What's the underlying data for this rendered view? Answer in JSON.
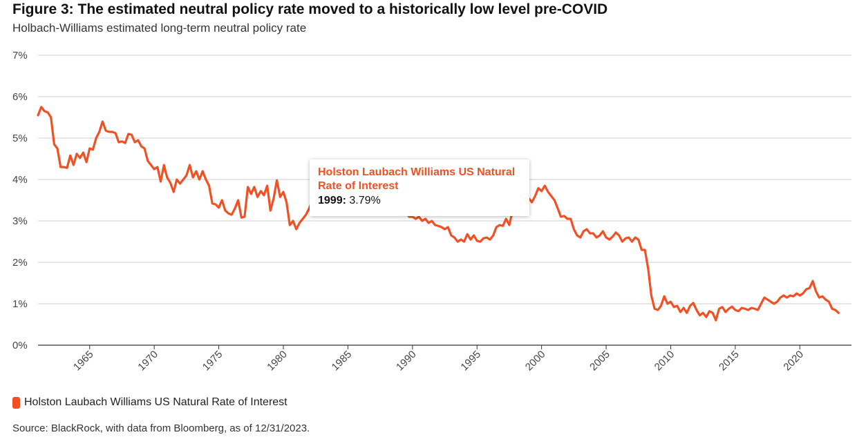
{
  "title": "Figure 3: The estimated neutral policy rate moved to a historically low level pre-COVID",
  "subtitle": "Holbach-Williams estimated long-term neutral policy rate",
  "source": "Source: BlackRock, with data from Bloomberg, as of 12/31/2023.",
  "accent_color": "#f05023",
  "tooltip": {
    "series_name": "Holston Laubach Williams US Natural Rate of Interest",
    "year": "1999:",
    "value": "3.79%"
  },
  "chart_data": {
    "type": "line",
    "title": "Figure 3: The estimated neutral policy rate moved to a historically low level pre-COVID",
    "subtitle": "Holbach-Williams estimated long-term neutral policy rate",
    "xlabel": "",
    "ylabel": "",
    "xlim": [
      1961,
      2024
    ],
    "ylim": [
      0,
      7
    ],
    "grid": true,
    "legend_position": "bottom-left",
    "y_ticks": [
      0,
      1,
      2,
      3,
      4,
      5,
      6,
      7
    ],
    "y_tick_labels": [
      "0%",
      "1%",
      "2%",
      "3%",
      "4%",
      "5%",
      "6%",
      "7%"
    ],
    "x_ticks": [
      1965,
      1970,
      1975,
      1980,
      1985,
      1990,
      1995,
      2000,
      2005,
      2010,
      2015,
      2020
    ],
    "x_tick_labels": [
      "1965",
      "1970",
      "1975",
      "1980",
      "1985",
      "1990",
      "1995",
      "2000",
      "2005",
      "2010",
      "2015",
      "2020"
    ],
    "series": [
      {
        "name": "Holston Laubach Williams US Natural Rate of Interest",
        "color": "#f05023",
        "points": [
          [
            1961.0,
            5.55
          ],
          [
            1961.25,
            5.75
          ],
          [
            1961.5,
            5.65
          ],
          [
            1961.75,
            5.62
          ],
          [
            1962.0,
            5.5
          ],
          [
            1962.25,
            4.85
          ],
          [
            1962.5,
            4.75
          ],
          [
            1962.75,
            4.3
          ],
          [
            1963.0,
            4.3
          ],
          [
            1963.25,
            4.28
          ],
          [
            1963.5,
            4.58
          ],
          [
            1963.75,
            4.35
          ],
          [
            1964.0,
            4.62
          ],
          [
            1964.25,
            4.52
          ],
          [
            1964.5,
            4.65
          ],
          [
            1964.75,
            4.42
          ],
          [
            1965.0,
            4.75
          ],
          [
            1965.25,
            4.72
          ],
          [
            1965.5,
            5.0
          ],
          [
            1965.75,
            5.15
          ],
          [
            1966.0,
            5.4
          ],
          [
            1966.25,
            5.18
          ],
          [
            1966.5,
            5.15
          ],
          [
            1966.75,
            5.15
          ],
          [
            1967.0,
            5.12
          ],
          [
            1967.25,
            4.9
          ],
          [
            1967.5,
            4.92
          ],
          [
            1967.75,
            4.88
          ],
          [
            1968.0,
            5.1
          ],
          [
            1968.25,
            5.08
          ],
          [
            1968.5,
            4.9
          ],
          [
            1968.75,
            4.95
          ],
          [
            1969.0,
            4.8
          ],
          [
            1969.25,
            4.75
          ],
          [
            1969.5,
            4.45
          ],
          [
            1969.75,
            4.35
          ],
          [
            1970.0,
            4.25
          ],
          [
            1970.25,
            4.3
          ],
          [
            1970.5,
            3.95
          ],
          [
            1970.75,
            4.35
          ],
          [
            1971.0,
            4.05
          ],
          [
            1971.25,
            3.92
          ],
          [
            1971.5,
            3.7
          ],
          [
            1971.75,
            4.0
          ],
          [
            1972.0,
            3.9
          ],
          [
            1972.25,
            4.0
          ],
          [
            1972.5,
            4.1
          ],
          [
            1972.75,
            4.35
          ],
          [
            1973.0,
            4.05
          ],
          [
            1973.25,
            4.2
          ],
          [
            1973.5,
            4.0
          ],
          [
            1973.75,
            4.2
          ],
          [
            1974.0,
            4.0
          ],
          [
            1974.25,
            3.85
          ],
          [
            1974.5,
            3.42
          ],
          [
            1974.75,
            3.4
          ],
          [
            1975.0,
            3.32
          ],
          [
            1975.25,
            3.5
          ],
          [
            1975.5,
            3.25
          ],
          [
            1975.75,
            3.18
          ],
          [
            1976.0,
            3.15
          ],
          [
            1976.25,
            3.3
          ],
          [
            1976.5,
            3.5
          ],
          [
            1976.75,
            3.08
          ],
          [
            1977.0,
            3.1
          ],
          [
            1977.25,
            3.82
          ],
          [
            1977.5,
            3.65
          ],
          [
            1977.75,
            3.82
          ],
          [
            1978.0,
            3.58
          ],
          [
            1978.25,
            3.72
          ],
          [
            1978.5,
            3.62
          ],
          [
            1978.75,
            3.85
          ],
          [
            1979.0,
            3.25
          ],
          [
            1979.25,
            3.55
          ],
          [
            1979.5,
            3.98
          ],
          [
            1979.75,
            3.58
          ],
          [
            1980.0,
            3.7
          ],
          [
            1980.25,
            3.45
          ],
          [
            1980.5,
            2.9
          ],
          [
            1980.75,
            3.0
          ],
          [
            1981.0,
            2.8
          ],
          [
            1981.25,
            2.95
          ],
          [
            1981.5,
            3.05
          ],
          [
            1981.75,
            3.15
          ]
        ]
      }
    ]
  },
  "legend": {
    "label": "Holston Laubach Williams US Natural Rate of Interest"
  }
}
